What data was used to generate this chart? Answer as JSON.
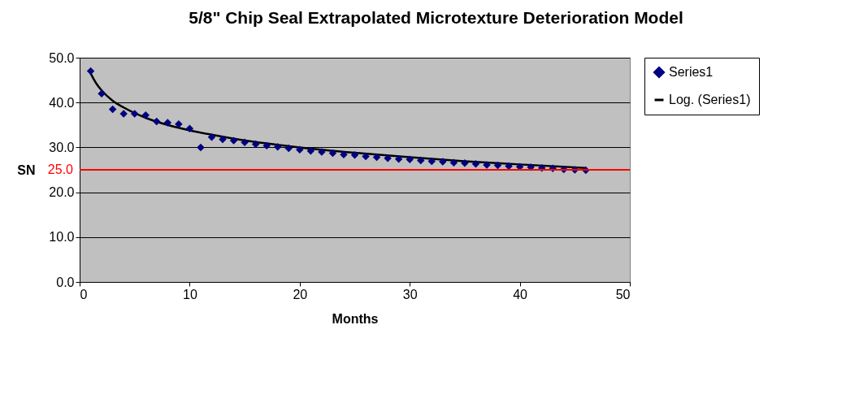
{
  "chart_data": {
    "type": "scatter",
    "title": "5/8\" Chip Seal Extrapolated Microtexture Deterioration Model",
    "xlabel": "Months",
    "ylabel": "SN",
    "x": [
      1,
      2,
      3,
      4,
      5,
      6,
      7,
      8,
      9,
      10,
      11,
      12,
      13,
      14,
      15,
      16,
      17,
      18,
      19,
      20,
      21,
      22,
      23,
      24,
      25,
      26,
      27,
      28,
      29,
      30,
      31,
      32,
      33,
      34,
      35,
      36,
      37,
      38,
      39,
      40,
      41,
      42,
      43,
      44,
      45,
      46
    ],
    "series": [
      {
        "name": "Series1",
        "color": "#000080",
        "marker": "diamond",
        "values": [
          47.0,
          42.0,
          38.5,
          37.5,
          37.5,
          37.2,
          35.8,
          35.5,
          35.2,
          34.2,
          30.0,
          32.3,
          31.8,
          31.5,
          31.1,
          30.7,
          30.4,
          30.1,
          29.8,
          29.5,
          29.2,
          29.0,
          28.7,
          28.4,
          28.3,
          28.0,
          27.8,
          27.6,
          27.4,
          27.3,
          27.1,
          26.9,
          26.8,
          26.6,
          26.5,
          26.3,
          26.1,
          26.0,
          25.8,
          25.7,
          25.6,
          25.4,
          25.3,
          25.1,
          25.0,
          24.9
        ]
      },
      {
        "name": "Log. (Series1)",
        "type": "line",
        "color": "#000000",
        "x": [
          1,
          1.5,
          2,
          3,
          4,
          6,
          8,
          10,
          13,
          16,
          20,
          25,
          30,
          35,
          40,
          46
        ],
        "values": [
          46.5,
          44.3,
          42.7,
          40.4,
          38.9,
          36.6,
          35.0,
          33.8,
          32.4,
          31.2,
          30.0,
          28.8,
          27.8,
          26.9,
          26.2,
          25.4
        ]
      }
    ],
    "xlim": [
      0,
      50
    ],
    "xticks": [
      0,
      10,
      20,
      30,
      40,
      50
    ],
    "ylim": [
      0,
      50
    ],
    "yticks": [
      {
        "value": 0,
        "label": "0.0"
      },
      {
        "value": 10,
        "label": "10.0"
      },
      {
        "value": 20,
        "label": "20.0"
      },
      {
        "value": 30,
        "label": "30.0"
      },
      {
        "value": 40,
        "label": "40.0"
      },
      {
        "value": 50,
        "label": "50.0"
      }
    ],
    "ref_lines": [
      {
        "axis": "y",
        "value": 25,
        "label": "25.0",
        "color": "#ff0000"
      }
    ],
    "grid": "y",
    "legend": "right"
  }
}
